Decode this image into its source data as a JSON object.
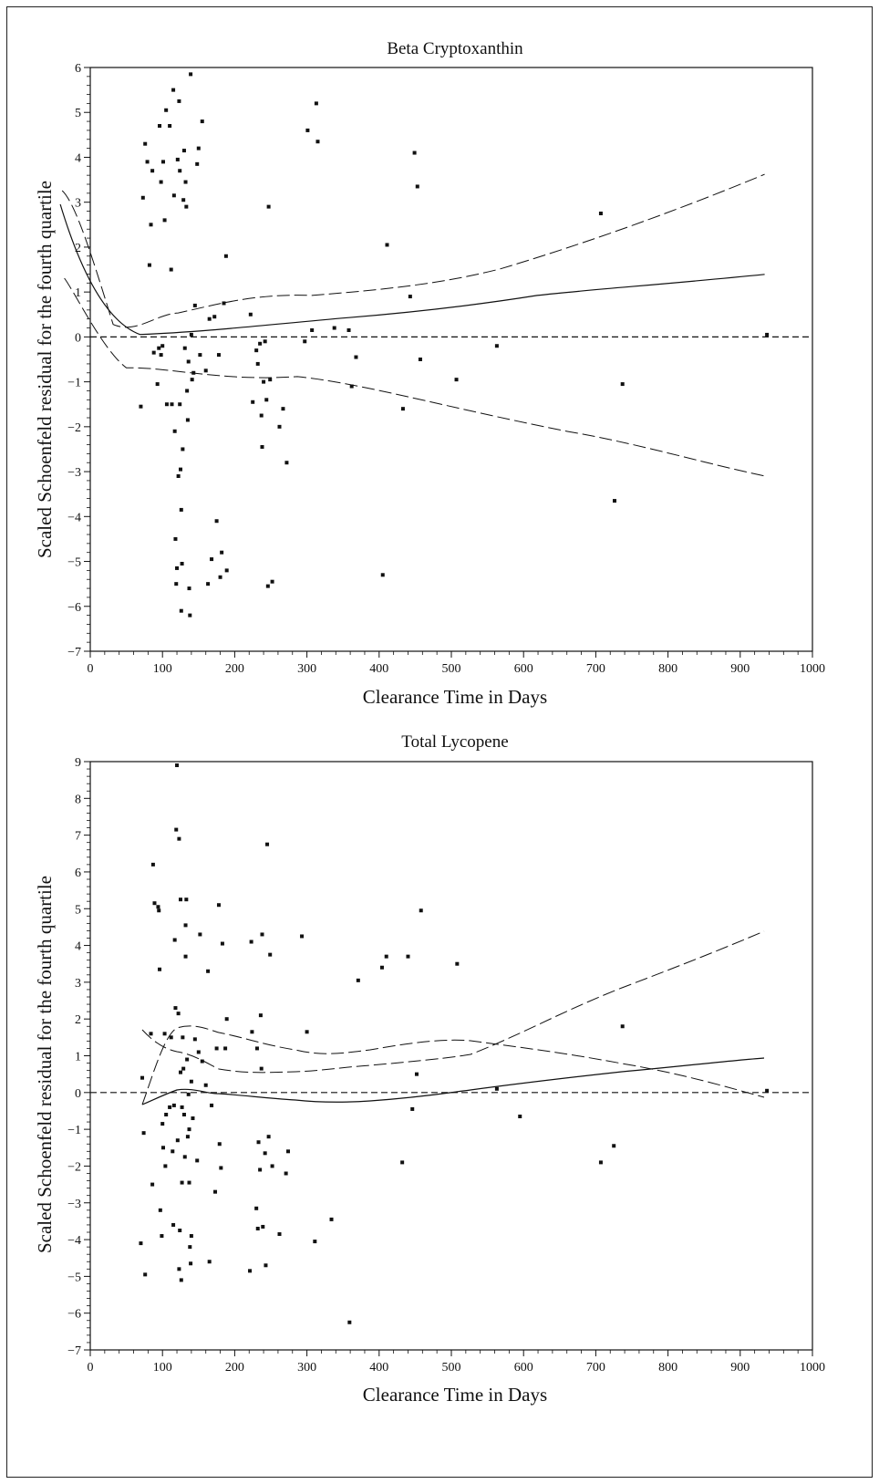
{
  "chart_data": [
    {
      "type": "scatter",
      "title": "Beta Cryptoxanthin",
      "xlabel": "Clearance Time in Days",
      "ylabel": "Scaled Schoenfeld residual for the fourth quartile",
      "xlim": [
        0,
        1000
      ],
      "ylim": [
        -7,
        6
      ],
      "xticks": [
        0,
        100,
        200,
        300,
        400,
        500,
        600,
        700,
        800,
        900,
        1000
      ],
      "yticks": [
        -7,
        -6,
        -5,
        -4,
        -3,
        -2,
        -1,
        0,
        1,
        2,
        3,
        4,
        5,
        6
      ],
      "reference_line_y": 0,
      "grid": false,
      "points": [
        [
          70,
          -1.55
        ],
        [
          73,
          3.1
        ],
        [
          76,
          4.3
        ],
        [
          79,
          3.9
        ],
        [
          82,
          1.6
        ],
        [
          84,
          2.5
        ],
        [
          86,
          3.7
        ],
        [
          88,
          -0.35
        ],
        [
          93,
          -1.05
        ],
        [
          95,
          -0.25
        ],
        [
          96,
          4.7
        ],
        [
          98,
          3.45
        ],
        [
          98,
          -0.4
        ],
        [
          100,
          -0.2
        ],
        [
          101,
          3.9
        ],
        [
          103,
          2.6
        ],
        [
          105,
          5.05
        ],
        [
          106,
          -1.5
        ],
        [
          110,
          4.7
        ],
        [
          112,
          1.5
        ],
        [
          113,
          -1.5
        ],
        [
          115,
          5.5
        ],
        [
          116,
          3.15
        ],
        [
          117,
          -2.1
        ],
        [
          118,
          -4.5
        ],
        [
          119,
          -5.5
        ],
        [
          120,
          -5.15
        ],
        [
          121,
          3.95
        ],
        [
          122,
          -3.1
        ],
        [
          123,
          5.25
        ],
        [
          124,
          3.7
        ],
        [
          124,
          -1.5
        ],
        [
          125,
          -2.95
        ],
        [
          126,
          -3.85
        ],
        [
          126,
          -6.1
        ],
        [
          127,
          -5.05
        ],
        [
          128,
          -2.5
        ],
        [
          129,
          3.05
        ],
        [
          130,
          4.15
        ],
        [
          131,
          -0.25
        ],
        [
          132,
          3.45
        ],
        [
          133,
          2.9
        ],
        [
          134,
          -1.2
        ],
        [
          135,
          -1.85
        ],
        [
          136,
          -0.55
        ],
        [
          137,
          -5.6
        ],
        [
          138,
          -6.2
        ],
        [
          139,
          5.85
        ],
        [
          140,
          0.05
        ],
        [
          141,
          -0.95
        ],
        [
          143,
          -0.8
        ],
        [
          145,
          0.7
        ],
        [
          148,
          3.85
        ],
        [
          150,
          4.2
        ],
        [
          152,
          -0.4
        ],
        [
          155,
          4.8
        ],
        [
          160,
          -0.75
        ],
        [
          163,
          -5.5
        ],
        [
          165,
          0.4
        ],
        [
          168,
          -4.95
        ],
        [
          172,
          0.45
        ],
        [
          175,
          -4.1
        ],
        [
          178,
          -0.4
        ],
        [
          180,
          -5.35
        ],
        [
          182,
          -4.8
        ],
        [
          185,
          0.75
        ],
        [
          188,
          1.8
        ],
        [
          189,
          -5.2
        ],
        [
          222,
          0.5
        ],
        [
          225,
          -1.45
        ],
        [
          230,
          -0.3
        ],
        [
          232,
          -0.6
        ],
        [
          235,
          -0.15
        ],
        [
          237,
          -1.75
        ],
        [
          238,
          -2.45
        ],
        [
          240,
          -1.0
        ],
        [
          242,
          -0.1
        ],
        [
          244,
          -1.4
        ],
        [
          246,
          -5.55
        ],
        [
          247,
          2.9
        ],
        [
          249,
          -0.95
        ],
        [
          252,
          -5.45
        ],
        [
          262,
          -2.0
        ],
        [
          267,
          -1.6
        ],
        [
          272,
          -2.8
        ],
        [
          297,
          -0.1
        ],
        [
          301,
          4.6
        ],
        [
          307,
          0.15
        ],
        [
          313,
          5.2
        ],
        [
          315,
          4.35
        ],
        [
          338,
          0.2
        ],
        [
          358,
          0.15
        ],
        [
          362,
          -1.1
        ],
        [
          368,
          -0.45
        ],
        [
          405,
          -5.3
        ],
        [
          411,
          2.05
        ],
        [
          433,
          -1.6
        ],
        [
          443,
          0.9
        ],
        [
          449,
          4.1
        ],
        [
          453,
          3.35
        ],
        [
          457,
          -0.5
        ],
        [
          507,
          -0.95
        ],
        [
          563,
          -0.2
        ],
        [
          707,
          2.75
        ],
        [
          726,
          -3.65
        ],
        [
          737,
          -1.05
        ],
        [
          937,
          0.05
        ]
      ]
    },
    {
      "type": "scatter",
      "title": "Total Lycopene",
      "xlabel": "Clearance Time in Days",
      "ylabel": "Scaled Schoenfeld residual for the fourth quartile",
      "xlim": [
        0,
        1000
      ],
      "ylim": [
        -7,
        9
      ],
      "xticks": [
        0,
        100,
        200,
        300,
        400,
        500,
        600,
        700,
        800,
        900,
        1000
      ],
      "yticks": [
        -7,
        -6,
        -5,
        -4,
        -3,
        -2,
        -1,
        0,
        1,
        2,
        3,
        4,
        5,
        6,
        7,
        8,
        9
      ],
      "reference_line_y": 0,
      "grid": false,
      "points": [
        [
          70,
          -4.1
        ],
        [
          72,
          0.4
        ],
        [
          74,
          -1.1
        ],
        [
          76,
          -4.95
        ],
        [
          84,
          1.6
        ],
        [
          86,
          -2.5
        ],
        [
          87,
          6.2
        ],
        [
          89,
          5.15
        ],
        [
          94,
          5.05
        ],
        [
          95,
          4.95
        ],
        [
          96,
          3.35
        ],
        [
          97,
          -3.2
        ],
        [
          99,
          -3.9
        ],
        [
          100,
          -0.85
        ],
        [
          101,
          -1.5
        ],
        [
          103,
          1.6
        ],
        [
          104,
          -2.0
        ],
        [
          105,
          -0.6
        ],
        [
          110,
          -0.4
        ],
        [
          112,
          1.5
        ],
        [
          114,
          -1.6
        ],
        [
          115,
          -3.6
        ],
        [
          116,
          -0.35
        ],
        [
          117,
          4.15
        ],
        [
          118,
          2.3
        ],
        [
          119,
          7.15
        ],
        [
          120,
          8.9
        ],
        [
          121,
          -1.3
        ],
        [
          122,
          2.15
        ],
        [
          123,
          -4.8
        ],
        [
          123,
          6.9
        ],
        [
          124,
          -3.75
        ],
        [
          125,
          5.25
        ],
        [
          125,
          0.55
        ],
        [
          126,
          -5.1
        ],
        [
          127,
          -2.45
        ],
        [
          127,
          -0.4
        ],
        [
          128,
          1.5
        ],
        [
          129,
          0.65
        ],
        [
          130,
          -0.6
        ],
        [
          131,
          -1.75
        ],
        [
          132,
          4.55
        ],
        [
          132,
          3.7
        ],
        [
          133,
          5.25
        ],
        [
          134,
          0.9
        ],
        [
          135,
          -1.2
        ],
        [
          136,
          -0.05
        ],
        [
          137,
          -2.45
        ],
        [
          137,
          -1.0
        ],
        [
          138,
          -4.2
        ],
        [
          139,
          -4.65
        ],
        [
          140,
          -3.9
        ],
        [
          140,
          0.3
        ],
        [
          142,
          -0.7
        ],
        [
          145,
          1.45
        ],
        [
          148,
          -1.85
        ],
        [
          150,
          1.1
        ],
        [
          152,
          4.3
        ],
        [
          155,
          0.85
        ],
        [
          160,
          0.2
        ],
        [
          163,
          3.3
        ],
        [
          165,
          -4.6
        ],
        [
          168,
          -0.35
        ],
        [
          173,
          -2.7
        ],
        [
          175,
          1.2
        ],
        [
          178,
          5.1
        ],
        [
          179,
          -1.4
        ],
        [
          181,
          -2.05
        ],
        [
          183,
          4.05
        ],
        [
          187,
          1.2
        ],
        [
          189,
          2.0
        ],
        [
          221,
          -4.85
        ],
        [
          223,
          4.1
        ],
        [
          224,
          1.65
        ],
        [
          230,
          -3.15
        ],
        [
          231,
          1.2
        ],
        [
          232,
          -3.7
        ],
        [
          233,
          -1.35
        ],
        [
          235,
          -2.1
        ],
        [
          236,
          2.1
        ],
        [
          237,
          0.65
        ],
        [
          238,
          4.3
        ],
        [
          239,
          -3.65
        ],
        [
          242,
          -1.65
        ],
        [
          243,
          -4.7
        ],
        [
          245,
          6.75
        ],
        [
          247,
          -1.2
        ],
        [
          249,
          3.75
        ],
        [
          252,
          -2.0
        ],
        [
          262,
          -3.85
        ],
        [
          271,
          -2.2
        ],
        [
          274,
          -1.6
        ],
        [
          293,
          4.25
        ],
        [
          300,
          1.65
        ],
        [
          311,
          -4.05
        ],
        [
          334,
          -3.45
        ],
        [
          359,
          -6.25
        ],
        [
          371,
          3.05
        ],
        [
          404,
          3.4
        ],
        [
          410,
          3.7
        ],
        [
          432,
          -1.9
        ],
        [
          440,
          3.7
        ],
        [
          446,
          -0.45
        ],
        [
          452,
          0.5
        ],
        [
          458,
          4.95
        ],
        [
          508,
          3.5
        ],
        [
          563,
          0.1
        ],
        [
          595,
          -0.65
        ],
        [
          707,
          -1.9
        ],
        [
          725,
          -1.45
        ],
        [
          737,
          1.8
        ],
        [
          937,
          0.05
        ]
      ]
    }
  ]
}
